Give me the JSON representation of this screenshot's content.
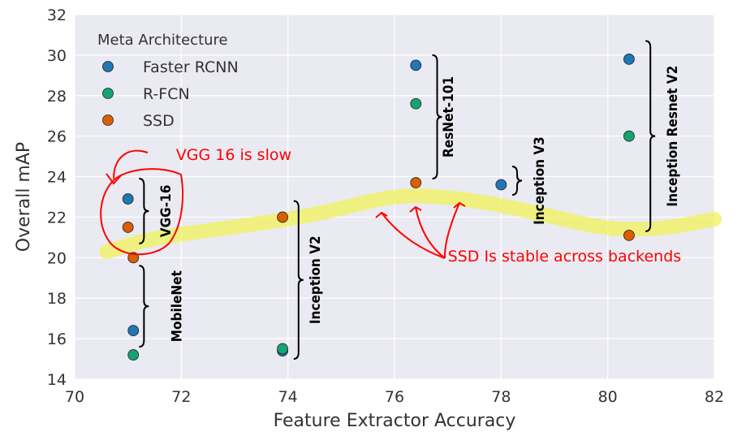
{
  "chart_data": {
    "type": "scatter",
    "xlabel": "Feature Extractor Accuracy",
    "ylabel": "Overall mAP",
    "xlim": [
      70,
      82
    ],
    "ylim": [
      14,
      32
    ],
    "xticks": [
      "70",
      "72",
      "74",
      "76",
      "78",
      "80",
      "82"
    ],
    "yticks": [
      "14",
      "16",
      "18",
      "20",
      "22",
      "24",
      "26",
      "28",
      "30",
      "32"
    ],
    "grid": true,
    "background": "#eaeaf2",
    "legend": {
      "title": "Meta Architecture",
      "placement": "top-left",
      "entries": [
        "Faster RCNN",
        "R-FCN",
        "SSD"
      ]
    },
    "series": [
      {
        "name": "Faster RCNN",
        "color": "#1f77b4",
        "points": [
          [
            71.0,
            22.9
          ],
          [
            71.1,
            16.4
          ],
          [
            73.9,
            15.4
          ],
          [
            76.4,
            29.5
          ],
          [
            78.0,
            23.6
          ],
          [
            80.4,
            29.8
          ]
        ]
      },
      {
        "name": "R-FCN",
        "color": "#17a273",
        "points": [
          [
            71.1,
            15.2
          ],
          [
            73.9,
            15.5
          ],
          [
            76.4,
            27.6
          ],
          [
            80.4,
            26.0
          ]
        ]
      },
      {
        "name": "SSD",
        "color": "#d95f02",
        "points": [
          [
            71.0,
            21.5
          ],
          [
            71.1,
            20.0
          ],
          [
            73.9,
            22.0
          ],
          [
            76.4,
            23.7
          ],
          [
            80.4,
            21.1
          ]
        ]
      }
    ],
    "brackets": [
      {
        "label": "VGG-16",
        "x": 71.3,
        "y_from": 20.7,
        "y_to": 23.9,
        "label_x": 71.8
      },
      {
        "label": "MobileNet",
        "x": 71.3,
        "y_from": 15.6,
        "y_to": 19.6,
        "label_x": 72.0
      },
      {
        "label": "Inception V2",
        "x": 74.2,
        "y_from": 15.0,
        "y_to": 22.8,
        "label_x": 74.6
      },
      {
        "label": "ResNet-101",
        "x": 76.8,
        "y_from": 23.9,
        "y_to": 30.0,
        "label_x": 77.1
      },
      {
        "label": "Inception V3",
        "x": 78.3,
        "y_from": 23.1,
        "y_to": 24.5,
        "label_x": 78.8
      },
      {
        "label": "Inception Resnet V2",
        "x": 80.8,
        "y_from": 21.3,
        "y_to": 30.7,
        "label_x": 81.3
      }
    ],
    "highlight_curve": [
      [
        70.6,
        20.3
      ],
      [
        71.5,
        21.0
      ],
      [
        73.0,
        21.5
      ],
      [
        74.5,
        22.1
      ],
      [
        76.0,
        23.1
      ],
      [
        77.0,
        23.0
      ],
      [
        78.0,
        22.6
      ],
      [
        79.0,
        22.0
      ],
      [
        80.0,
        21.4
      ],
      [
        81.0,
        21.4
      ],
      [
        82.0,
        21.9
      ]
    ],
    "annotations": [
      {
        "text": "VGG 16 is slow",
        "x": 71.9,
        "y": 25.1,
        "color": "#ff0000"
      },
      {
        "text": "SSD Is stable across backends",
        "x": 77.0,
        "y": 20.1,
        "color": "#ff0000"
      }
    ]
  }
}
